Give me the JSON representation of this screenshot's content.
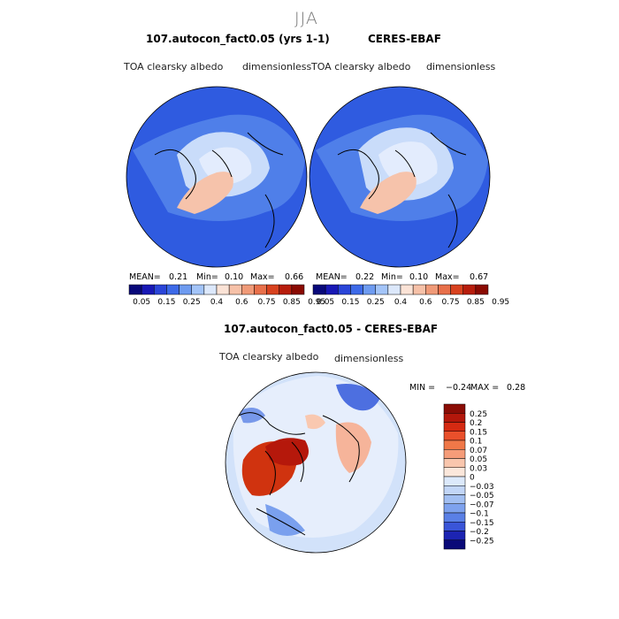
{
  "season": "JJA",
  "panels": [
    {
      "title": "107.autocon_fact0.05 (yrs 1-1)",
      "variable": "TOA clearsky albedo",
      "units": "dimensionless",
      "stats": {
        "mean_label": "MEAN=",
        "mean": "0.21",
        "min_label": "Min=",
        "min": "0.10",
        "max_label": "Max=",
        "max": "0.66"
      }
    },
    {
      "title": "CERES-EBAF",
      "variable": "TOA clearsky albedo",
      "units": "dimensionless",
      "stats": {
        "mean_label": "MEAN=",
        "mean": "0.22",
        "min_label": "Min=",
        "min": "0.10",
        "max_label": "Max=",
        "max": "0.67"
      }
    }
  ],
  "diff": {
    "title": "107.autocon_fact0.05 - CERES-EBAF",
    "variable": "TOA clearsky albedo",
    "units": "dimensionless",
    "stats": {
      "min_label": "MIN =",
      "min": "−0.24",
      "max_label": "MAX =",
      "max": "0.28"
    }
  },
  "chart_data": [
    {
      "type": "heatmap",
      "projection": "north-polar-stereographic",
      "title": "107.autocon_fact0.05 (yrs 1-1)",
      "variable": "TOA clearsky albedo",
      "units": "dimensionless",
      "mean": 0.21,
      "min": 0.1,
      "max": 0.66,
      "colorbar_ticks": [
        "0.05",
        "0.15",
        "0.25",
        "0.4",
        "0.6",
        "0.75",
        "0.85",
        "0.95"
      ]
    },
    {
      "type": "heatmap",
      "projection": "north-polar-stereographic",
      "title": "CERES-EBAF",
      "variable": "TOA clearsky albedo",
      "units": "dimensionless",
      "mean": 0.22,
      "min": 0.1,
      "max": 0.67,
      "colorbar_ticks": [
        "0.05",
        "0.15",
        "0.25",
        "0.4",
        "0.6",
        "0.75",
        "0.85",
        "0.95"
      ]
    },
    {
      "type": "heatmap",
      "projection": "north-polar-stereographic",
      "title": "107.autocon_fact0.05 - CERES-EBAF",
      "variable": "TOA clearsky albedo",
      "units": "dimensionless",
      "min": -0.24,
      "max": 0.28,
      "colorbar_ticks": [
        "0.25",
        "0.2",
        "0.15",
        "0.1",
        "0.07",
        "0.05",
        "0.03",
        "0",
        "−0.03",
        "−0.05",
        "−0.07",
        "−0.1",
        "−0.15",
        "−0.2",
        "−0.25"
      ]
    }
  ],
  "colors": {
    "abs_scale": [
      "#08087a",
      "#1818b5",
      "#2a45d8",
      "#3d6ae8",
      "#6e9bf0",
      "#a3c4f8",
      "#dce8fb",
      "#fbe3d6",
      "#f6c1a8",
      "#f09a78",
      "#e8704a",
      "#d8421f",
      "#b71d0c",
      "#8a0a02"
    ],
    "diff_scale": [
      "#8a0c05",
      "#b3170b",
      "#d52a12",
      "#e9502b",
      "#f07848",
      "#f59c79",
      "#f9c6ad",
      "#fbe7db",
      "#dce9fb",
      "#c2d6f7",
      "#a2bff2",
      "#7ea2ee",
      "#5a80e6",
      "#3a55d8",
      "#1c24b2",
      "#0a0a78"
    ]
  }
}
